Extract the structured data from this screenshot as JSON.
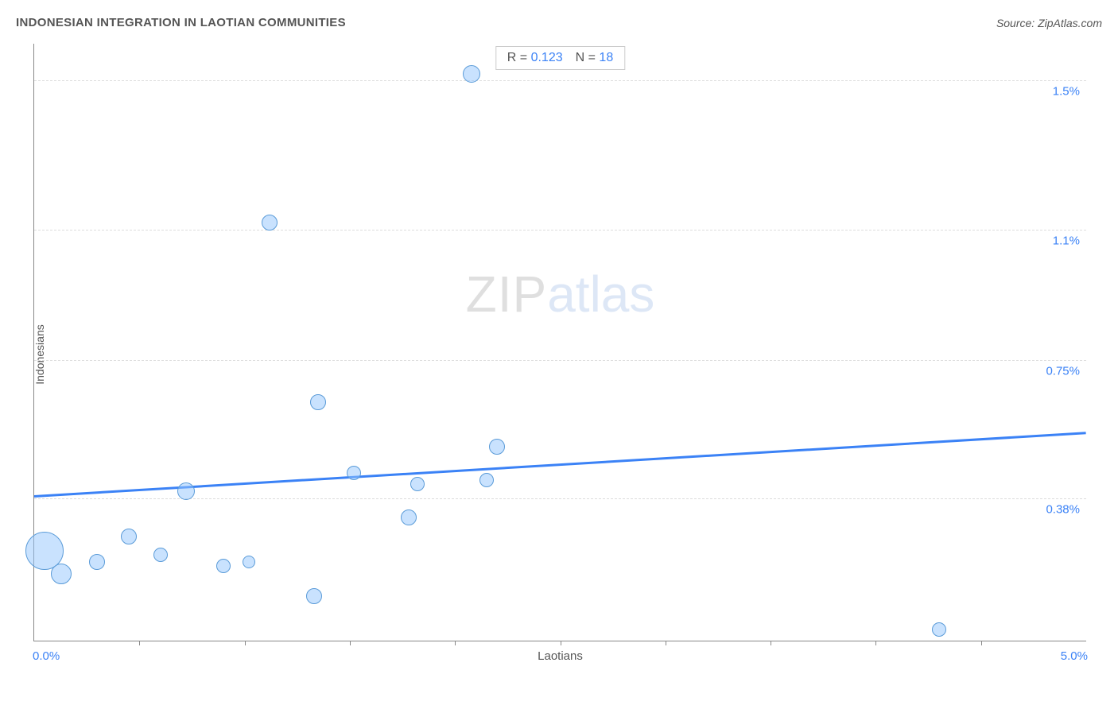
{
  "header": {
    "title": "INDONESIAN INTEGRATION IN LAOTIAN COMMUNITIES",
    "source": "Source: ZipAtlas.com"
  },
  "watermark": {
    "zip": "ZIP",
    "atlas": "atlas"
  },
  "chart": {
    "type": "scatter",
    "xlabel": "Laotians",
    "ylabel": "Indonesians",
    "xlim": [
      0.0,
      5.0
    ],
    "ylim": [
      0.0,
      1.6
    ],
    "xaxis_min_label": "0.0%",
    "xaxis_max_label": "5.0%",
    "ytick_values": [
      0.38,
      0.75,
      1.1,
      1.5
    ],
    "ytick_labels": [
      "0.38%",
      "0.75%",
      "1.1%",
      "1.5%"
    ],
    "xtick_values": [
      0.5,
      1.0,
      1.5,
      2.0,
      2.5,
      3.0,
      3.5,
      4.0,
      4.5
    ],
    "grid_color": "#dddddd",
    "axis_color": "#888888",
    "background_color": "#ffffff",
    "bubble_fill": "rgba(147,197,253,0.5)",
    "bubble_stroke": "#5a9bd8",
    "label_color": "#3b82f6",
    "text_color": "#555555",
    "title_fontsize": 15,
    "label_fontsize": 15,
    "axis_title_fontsize": 14,
    "stats": {
      "r_label": "R =",
      "r_value": "0.123",
      "n_label": "N =",
      "n_value": "18"
    },
    "trendline": {
      "y_at_xmin": 0.39,
      "y_at_xmax": 0.56,
      "color": "#3b82f6",
      "width": 2.5
    },
    "points": [
      {
        "x": 0.05,
        "y": 0.24,
        "r": 24
      },
      {
        "x": 0.13,
        "y": 0.18,
        "r": 13
      },
      {
        "x": 0.3,
        "y": 0.21,
        "r": 10
      },
      {
        "x": 0.45,
        "y": 0.28,
        "r": 10
      },
      {
        "x": 0.6,
        "y": 0.23,
        "r": 9
      },
      {
        "x": 0.72,
        "y": 0.4,
        "r": 11
      },
      {
        "x": 0.9,
        "y": 0.2,
        "r": 9
      },
      {
        "x": 1.02,
        "y": 0.21,
        "r": 8
      },
      {
        "x": 1.12,
        "y": 1.12,
        "r": 10
      },
      {
        "x": 1.33,
        "y": 0.12,
        "r": 10
      },
      {
        "x": 1.35,
        "y": 0.64,
        "r": 10
      },
      {
        "x": 1.52,
        "y": 0.45,
        "r": 9
      },
      {
        "x": 1.78,
        "y": 0.33,
        "r": 10
      },
      {
        "x": 1.82,
        "y": 0.42,
        "r": 9
      },
      {
        "x": 2.08,
        "y": 1.52,
        "r": 11
      },
      {
        "x": 2.15,
        "y": 0.43,
        "r": 9
      },
      {
        "x": 2.2,
        "y": 0.52,
        "r": 10
      },
      {
        "x": 4.3,
        "y": 0.03,
        "r": 9
      }
    ]
  }
}
